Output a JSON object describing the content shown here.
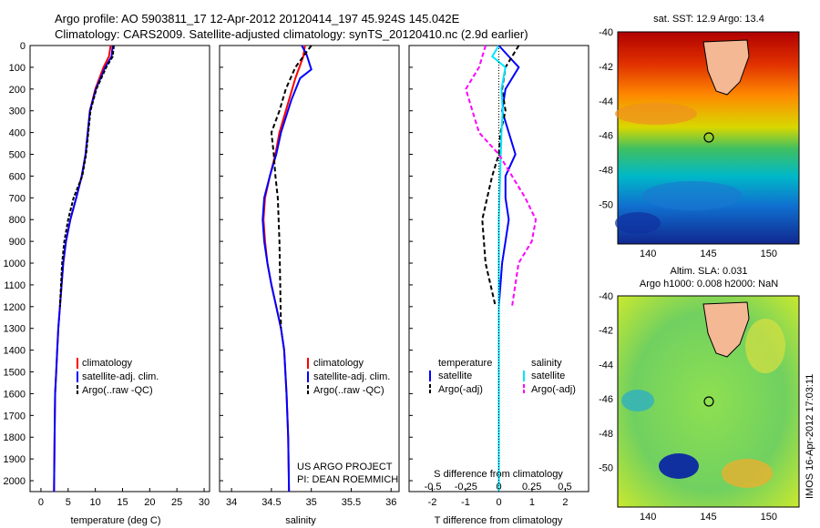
{
  "header": {
    "line1": "Argo profile: AO 5903811_17 12-Apr-2012 20120414_197 45.924S 145.042E",
    "line2": "Climatology: CARS2009. Satellite-adjusted climatology: synTS_20120410.nc (2.9d earlier)"
  },
  "depth_ticks": [
    "0",
    "100",
    "200",
    "300",
    "400",
    "500",
    "600",
    "700",
    "800",
    "900",
    "1000",
    "1100",
    "1200",
    "1300",
    "1400",
    "1500",
    "1600",
    "1700",
    "1800",
    "1900",
    "2000"
  ],
  "temp_panel": {
    "xlabel": "temperature (deg C)",
    "xticks": [
      "0",
      "5",
      "10",
      "15",
      "20",
      "25",
      "30"
    ],
    "legend": [
      "climatology",
      "satellite-adj. clim.",
      "Argo(..raw -QC)"
    ]
  },
  "sal_panel": {
    "xlabel": "salinity",
    "xticks": [
      "34",
      "34.5",
      "35",
      "35.5",
      "36"
    ],
    "legend": [
      "climatology",
      "satellite-adj. clim.",
      "Argo(..raw -QC)"
    ],
    "credit1": "US ARGO PROJECT",
    "credit2": "PI: DEAN ROEMMICH"
  },
  "diff_panel": {
    "xlabel": "T difference from climatology",
    "xticks": [
      "-2",
      "-1",
      "0",
      "1",
      "2"
    ],
    "top_label": "S difference from climatology",
    "top_ticks": [
      "-0.5",
      "-0.25",
      "0",
      "0.25",
      "0.5"
    ],
    "legend_t_title": "temperature",
    "legend_s_title": "salinity",
    "legend_items": [
      "satellite",
      "Argo(-adj)",
      "satellite",
      "Argo(-adj)"
    ]
  },
  "sst_map": {
    "title": "sat. SST: 12.9 Argo: 13.4",
    "yticks": [
      "-40",
      "-42",
      "-44",
      "-46",
      "-48",
      "-50"
    ],
    "xticks": [
      "140",
      "145",
      "150"
    ]
  },
  "sla_map": {
    "title1": "Altim. SLA: 0.031",
    "title2": "Argo h1000: 0.008 h2000: NaN",
    "yticks": [
      "-40",
      "-42",
      "-44",
      "-46",
      "-48",
      "-50"
    ],
    "xticks": [
      "140",
      "145",
      "150"
    ]
  },
  "side_stamp": "IMOS 16-Apr-2012 17:03:11",
  "colors": {
    "clim": "#ff0000",
    "sat": "#0000ff",
    "argo": "#000000",
    "sat_s": "#00e5ff",
    "argo_s": "#ff00ff"
  },
  "chart_data": [
    {
      "type": "line",
      "xlabel": "temperature (deg C)",
      "xlim": [
        -2,
        31
      ],
      "ylim": [
        2050,
        0
      ],
      "series": [
        {
          "name": "climatology",
          "x": [
            12.8,
            12.5,
            11.5,
            10.0,
            9.0,
            8.6,
            8.2,
            7.5,
            6.5,
            5.4,
            4.6,
            4.1,
            3.8,
            3.5,
            3.2,
            3.0,
            2.8,
            2.6,
            2.5,
            2.4
          ],
          "y": [
            0,
            50,
            100,
            200,
            300,
            400,
            500,
            600,
            700,
            800,
            900,
            1000,
            1100,
            1200,
            1300,
            1400,
            1500,
            1600,
            1800,
            2050
          ]
        },
        {
          "name": "satellite-adj. clim.",
          "x": [
            13.2,
            13.0,
            11.8,
            10.1,
            9.0,
            8.6,
            8.2,
            7.5,
            6.5,
            5.4,
            4.6,
            4.1,
            3.8,
            3.5,
            3.2,
            3.0,
            2.8,
            2.6,
            2.5,
            2.4
          ],
          "y": [
            0,
            50,
            100,
            200,
            300,
            400,
            500,
            600,
            700,
            800,
            900,
            1000,
            1100,
            1200,
            1300,
            1400,
            1500,
            1600,
            1800,
            2050
          ]
        },
        {
          "name": "Argo(..raw -QC)",
          "x": [
            13.4,
            13.2,
            12.0,
            10.2,
            9.1,
            8.7,
            8.3,
            7.6,
            6.0,
            5.0,
            4.3,
            3.9,
            3.7,
            3.5
          ],
          "y": [
            0,
            50,
            100,
            200,
            300,
            400,
            500,
            600,
            700,
            800,
            900,
            1000,
            1100,
            1200
          ]
        }
      ]
    },
    {
      "type": "line",
      "xlabel": "salinity",
      "xlim": [
        33.85,
        36.1
      ],
      "ylim": [
        2050,
        0
      ],
      "series": [
        {
          "name": "climatology",
          "x": [
            34.92,
            34.9,
            34.85,
            34.8,
            34.72,
            34.6,
            34.55,
            34.48,
            34.42,
            34.4,
            34.42,
            34.45,
            34.5,
            34.56,
            34.62,
            34.66,
            34.69,
            34.71,
            34.72
          ],
          "y": [
            0,
            50,
            100,
            150,
            250,
            400,
            500,
            600,
            700,
            800,
            900,
            1000,
            1100,
            1200,
            1300,
            1400,
            1600,
            1800,
            2050
          ]
        },
        {
          "name": "satellite-adj. clim.",
          "x": [
            34.88,
            34.94,
            35.0,
            34.86,
            34.75,
            34.62,
            34.56,
            34.48,
            34.41,
            34.39,
            34.41,
            34.45,
            34.5,
            34.56,
            34.62,
            34.66,
            34.69,
            34.71,
            34.72
          ],
          "y": [
            0,
            40,
            110,
            150,
            250,
            400,
            500,
            600,
            700,
            800,
            900,
            1000,
            1100,
            1200,
            1300,
            1400,
            1600,
            1800,
            2050
          ]
        },
        {
          "name": "Argo(..raw -QC)",
          "x": [
            35.0,
            34.8,
            34.68,
            34.6,
            34.5,
            34.53,
            34.55,
            34.58,
            34.6,
            34.62
          ],
          "y": [
            0,
            100,
            200,
            300,
            400,
            500,
            600,
            700,
            900,
            1300
          ]
        }
      ]
    },
    {
      "type": "line",
      "xlabel": "T difference from climatology",
      "xlim": [
        -2.7,
        2.7
      ],
      "ylim": [
        2050,
        0
      ],
      "series": [
        {
          "name": "satellite",
          "x": [
            0.0,
            0.3,
            0.6,
            0.2,
            0.1,
            0.3,
            0.5,
            0.2,
            0.2,
            0.3,
            0.2,
            0.1,
            0.0,
            0.0,
            0.0,
            0.0
          ],
          "y": [
            0,
            50,
            100,
            200,
            300,
            400,
            500,
            600,
            700,
            800,
            900,
            1000,
            1200,
            1500,
            1800,
            2050
          ]
        },
        {
          "name": "Argo(-adj)",
          "x": [
            0.6,
            0.2,
            0.1,
            0.2,
            0.05,
            0.0,
            -0.2,
            -0.35,
            -0.5,
            -0.4,
            -0.1
          ],
          "y": [
            0,
            100,
            200,
            300,
            400,
            500,
            600,
            700,
            800,
            1000,
            1200
          ]
        }
      ]
    },
    {
      "type": "line",
      "xlabel": "S difference from climatology",
      "xlim": [
        -0.68,
        0.68
      ],
      "ylim": [
        2050,
        0
      ],
      "series": [
        {
          "name": "satellite",
          "x": [
            0.0,
            -0.05,
            0.05,
            0.02,
            0.03,
            0.02,
            0.01,
            0.0,
            0.0,
            0.0
          ],
          "y": [
            0,
            50,
            100,
            200,
            300,
            400,
            600,
            800,
            1200,
            2050
          ]
        },
        {
          "name": "Argo(-adj)",
          "x": [
            -0.1,
            -0.15,
            -0.25,
            -0.2,
            -0.15,
            0.0,
            0.1,
            0.2,
            0.28,
            0.25,
            0.15,
            0.1
          ],
          "y": [
            0,
            100,
            200,
            300,
            400,
            500,
            600,
            700,
            800,
            900,
            1000,
            1200
          ]
        }
      ]
    }
  ]
}
